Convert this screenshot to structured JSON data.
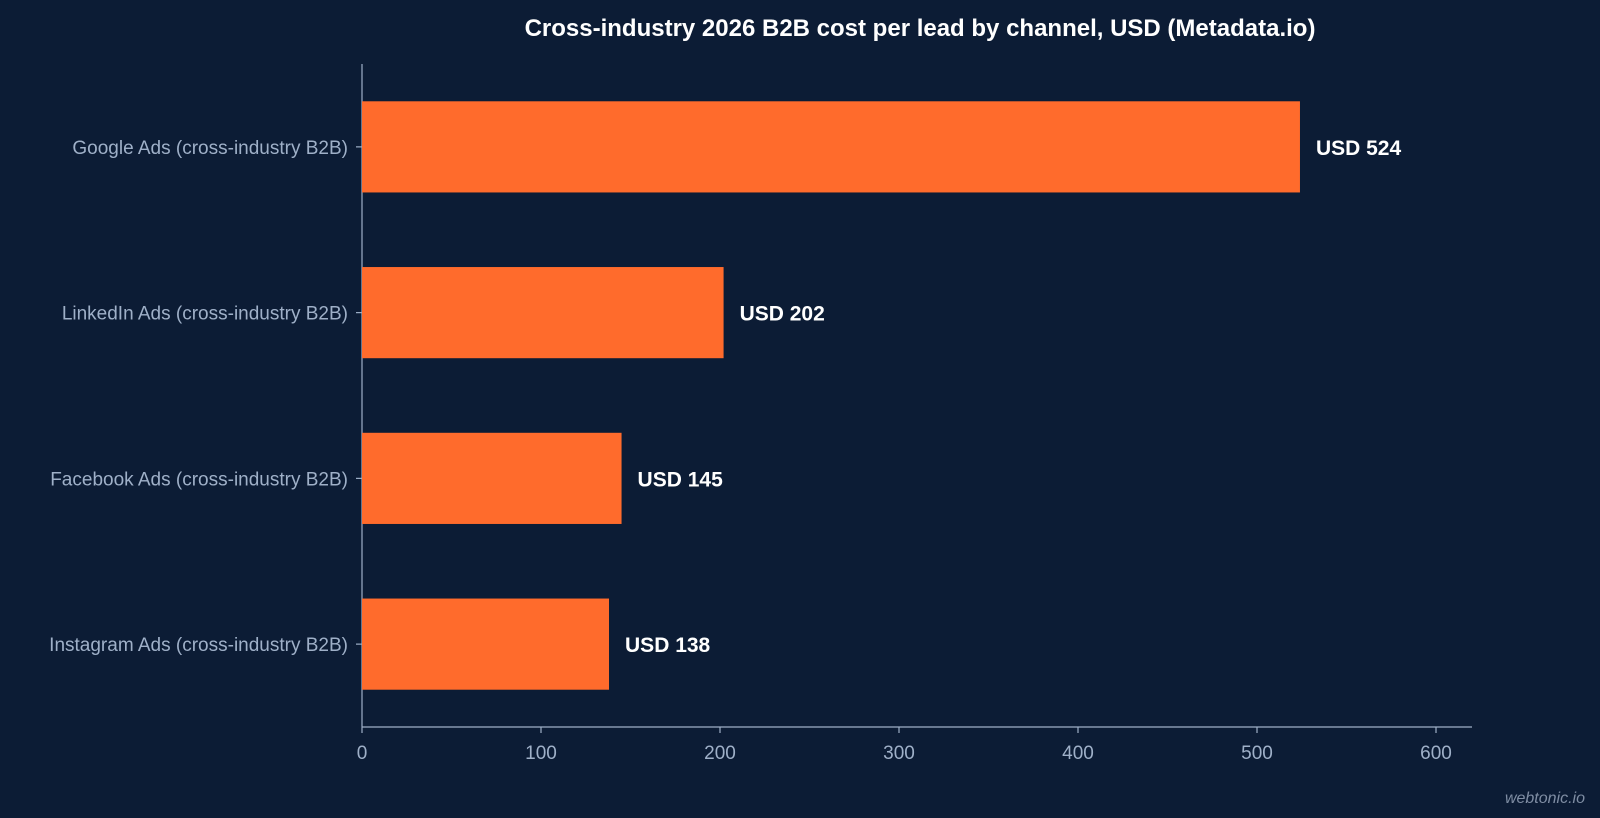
{
  "chart_data": {
    "type": "bar",
    "orientation": "horizontal",
    "title": "Cross-industry 2026 B2B cost per lead by channel, USD (Metadata.io)",
    "categories": [
      "Google Ads (cross-industry B2B)",
      "LinkedIn Ads (cross-industry B2B)",
      "Facebook Ads (cross-industry B2B)",
      "Instagram Ads (cross-industry B2B)"
    ],
    "values": [
      524,
      202,
      145,
      138
    ],
    "value_labels": [
      "USD 524",
      "USD 202",
      "USD 145",
      "USD 138"
    ],
    "xlim": [
      0,
      620
    ],
    "xticks": [
      0,
      100,
      200,
      300,
      400,
      500,
      600
    ],
    "grid": false,
    "bar_color": "#ff6b2c"
  },
  "watermark": "webtonic.io"
}
